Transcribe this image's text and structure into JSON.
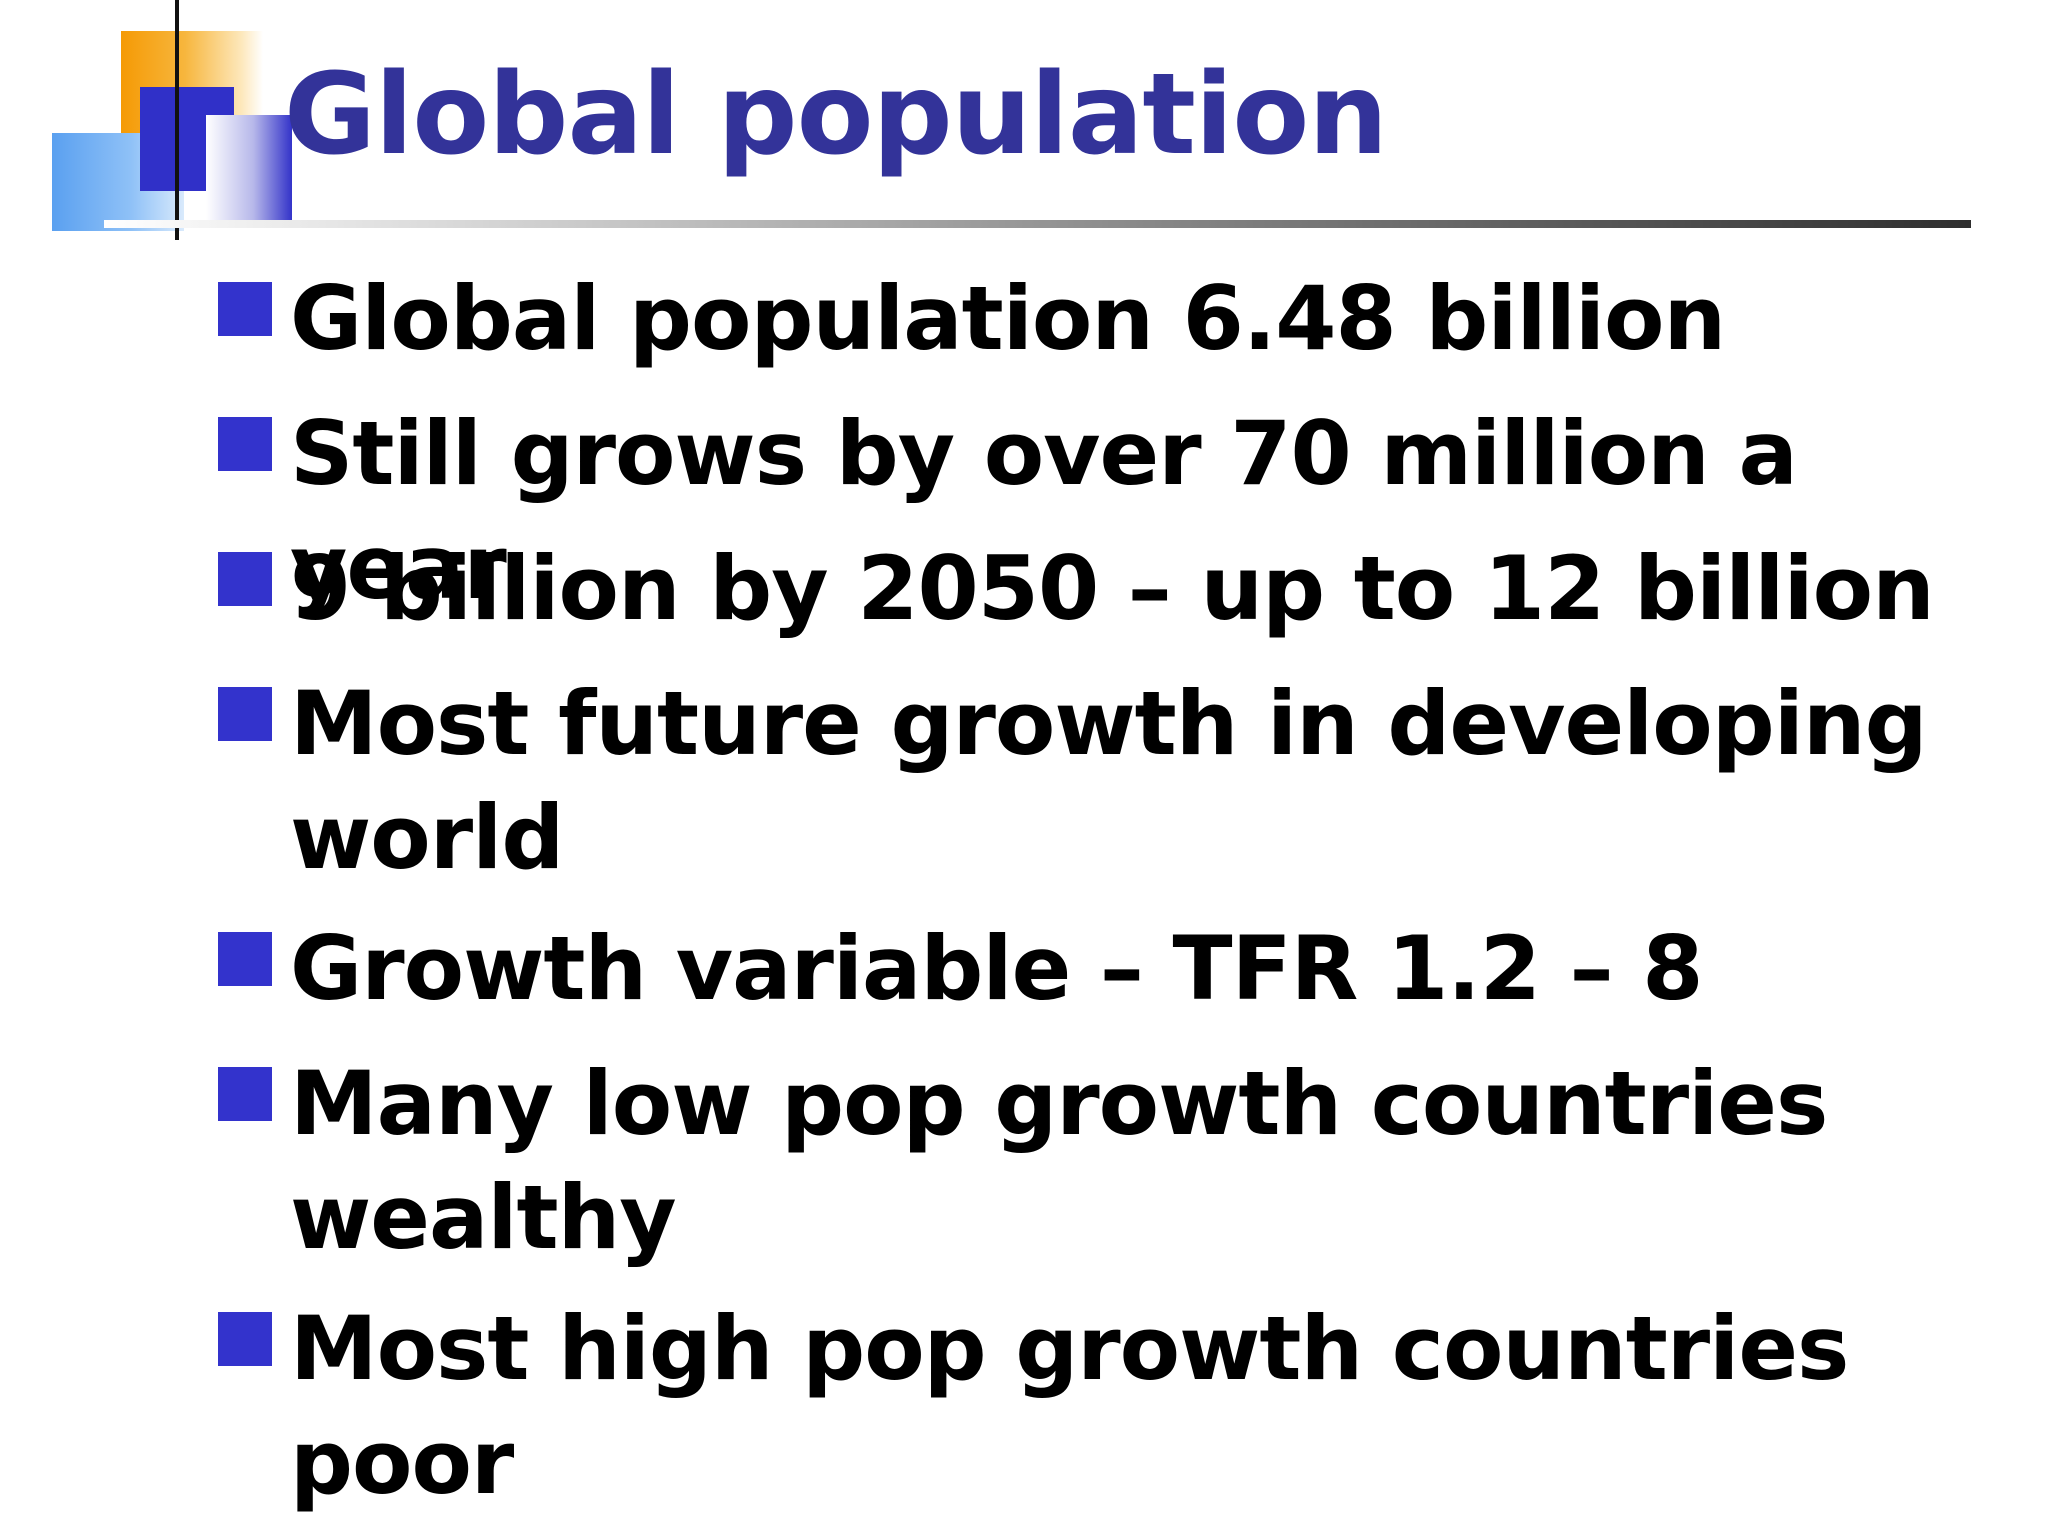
{
  "slide": {
    "title": "Global population",
    "bullets": [
      "Global population 6.48 billion",
      "Still grows by over 70 million a year",
      "9 billion by 2050 – up to 12 billion",
      "Most future growth in developing world",
      "Growth variable – TFR 1.2 – 8",
      "Many low pop growth countries wealthy",
      "Most high pop growth countries poor"
    ]
  },
  "colors": {
    "title": "#333399",
    "bullet_marker": "#3333cc",
    "text": "#000000",
    "accent_orange": "#f59a05",
    "accent_lightblue": "#5aa0f0",
    "accent_darkblue": "#3030c8"
  }
}
